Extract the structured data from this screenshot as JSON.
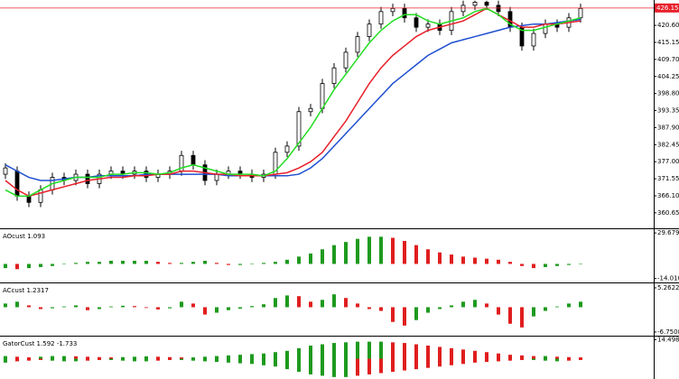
{
  "chart_data": [
    {
      "type": "candlestick",
      "open": [
        373,
        374,
        366,
        364,
        368,
        372,
        371,
        373,
        370,
        373,
        374,
        373,
        374,
        372,
        373,
        374,
        379,
        376,
        371,
        373,
        374,
        373,
        372,
        373,
        380,
        382,
        393,
        394,
        402,
        407,
        412,
        417,
        421,
        425,
        426,
        423,
        420,
        421,
        419,
        425,
        427,
        428,
        427,
        425,
        420,
        414,
        418,
        421,
        420,
        423
      ],
      "high": [
        376.5,
        375.5,
        367.5,
        369.5,
        373.5,
        373.5,
        374.5,
        374.5,
        374.5,
        375.5,
        375.5,
        375.5,
        375.5,
        374.5,
        375.5,
        380.5,
        380.5,
        377.5,
        374.5,
        375.5,
        375.5,
        374.5,
        374.5,
        381.5,
        383.5,
        394.5,
        395.5,
        403.5,
        408.5,
        413.5,
        418.5,
        422.5,
        426.5,
        427.5,
        427.5,
        424.5,
        422.5,
        422.5,
        426.5,
        428.5,
        428.5,
        428.5,
        428.5,
        426.5,
        421.5,
        419.5,
        422.5,
        422.5,
        424.5,
        427.5
      ],
      "low": [
        371.5,
        364.5,
        362.5,
        362.5,
        366.5,
        369.5,
        369.5,
        368.5,
        368.5,
        371.5,
        371.5,
        371.5,
        370.5,
        370.5,
        371.5,
        372.5,
        374.5,
        369.5,
        369.5,
        371.5,
        371.5,
        370.5,
        370.5,
        371.5,
        378.5,
        380.5,
        391.5,
        392.5,
        400.5,
        405.5,
        410.5,
        415.5,
        419.5,
        423.5,
        421.5,
        418.5,
        418.5,
        417.5,
        417.5,
        423.5,
        425.5,
        425.5,
        423.5,
        418.5,
        412.5,
        412.5,
        416.5,
        418.5,
        418.5,
        421.5
      ],
      "close": [
        375,
        366,
        364,
        368,
        372,
        371,
        373,
        370,
        373,
        374,
        373,
        374,
        372,
        373,
        374,
        379,
        376,
        371,
        373,
        374,
        373,
        372,
        373,
        380,
        382,
        393,
        394,
        402,
        407,
        412,
        417,
        421,
        425,
        426,
        423,
        420,
        421,
        419,
        425,
        427,
        428,
        427,
        425,
        420,
        414,
        418,
        421,
        420,
        423,
        426
      ],
      "up_color": "#ffffff",
      "down_color": "#000000",
      "lines": [
        {
          "color": "#1f4fd0",
          "values": [
            376,
            374,
            372,
            371,
            371,
            371.5,
            372,
            372,
            372.5,
            372.5,
            372.5,
            372.5,
            373,
            373,
            373,
            373,
            373,
            373,
            373,
            372.5,
            372.5,
            372.5,
            372.5,
            372.5,
            372.5,
            373,
            375,
            378,
            382,
            386,
            390,
            394,
            398,
            402,
            405,
            408,
            411,
            413,
            415,
            416,
            417,
            418,
            419,
            420,
            420.5,
            421,
            421,
            421.5,
            422,
            422.5
          ]
        },
        {
          "color": "#e8202a",
          "values": [
            371,
            368,
            366,
            367,
            368,
            369,
            370,
            371,
            371.5,
            372,
            372,
            372.5,
            372.5,
            373,
            373,
            374,
            374,
            373.5,
            373,
            373,
            372.5,
            372.5,
            372.5,
            373,
            373.5,
            375,
            377,
            380,
            385,
            390,
            396,
            402,
            407,
            411,
            414,
            417,
            419,
            420,
            421,
            422,
            424,
            426,
            424,
            422,
            420,
            420,
            421,
            421,
            421.5,
            422
          ]
        },
        {
          "color": "#22dd22",
          "values": [
            368,
            366,
            366,
            368,
            370,
            371,
            372,
            372,
            372,
            373,
            373,
            373.5,
            373.5,
            373,
            373.5,
            375,
            376,
            375,
            374,
            373,
            373,
            373,
            372.5,
            374,
            378,
            383,
            388,
            394,
            400,
            405,
            410,
            415,
            419,
            422,
            424,
            424,
            422,
            421,
            422,
            423,
            425,
            426,
            424,
            421,
            419,
            419,
            420,
            421,
            422,
            423
          ]
        }
      ],
      "price_line": 426.15,
      "price_color": "#e8202a",
      "ylim": [
        356.0,
        428.7
      ],
      "yticks": [
        {
          "value": 420.6,
          "label": "420.60"
        },
        415.15,
        {
          "value": 409.7,
          "label": "409.70"
        },
        404.25,
        {
          "value": 398.8,
          "label": "398.80"
        },
        393.35,
        {
          "value": 387.9,
          "label": "387.90"
        },
        382.45,
        {
          "value": 377,
          "label": "377.00"
        },
        371.55,
        {
          "value": 366.1,
          "label": "366.10"
        },
        360.65
      ]
    },
    {
      "type": "histogram",
      "title": "AOcust 1.093",
      "up_color": "#1e9a1e",
      "down_color": "#e01e1e",
      "series": [
        {
          "values": [
            -4,
            -5,
            -4,
            -3,
            -2,
            0,
            1,
            2,
            2,
            3,
            3,
            3,
            3,
            2,
            1,
            1,
            2,
            3,
            1,
            -1,
            -1,
            0,
            1,
            2,
            4,
            7,
            10,
            14,
            18,
            21,
            24,
            26,
            26,
            25,
            22,
            18,
            14,
            11,
            9,
            7,
            6,
            5,
            4,
            2,
            -2,
            -4,
            -3,
            -2,
            -1,
            0
          ]
        }
      ],
      "ylim": [
        -16,
        31.5
      ],
      "yticks": [
        29.679,
        {
          "value": -14.01,
          "label": "-14.010"
        }
      ]
    },
    {
      "type": "histogram",
      "title": "ACcust 1.2317",
      "up_color": "#1e9a1e",
      "down_color": "#e01e1e",
      "series": [
        {
          "values": [
            1,
            1.5,
            0.5,
            -0.5,
            -0.3,
            0.2,
            0.5,
            -0.8,
            -0.5,
            0.2,
            0.4,
            0.3,
            -0.2,
            -0.6,
            -0.3,
            1.5,
            1,
            -2,
            -1.5,
            -0.8,
            -0.4,
            0.3,
            0.8,
            2.5,
            3.2,
            3,
            1.5,
            2,
            3.5,
            2.5,
            1,
            -0.5,
            -1,
            -4,
            -5,
            -3.5,
            -1.5,
            -0.5,
            0.5,
            1.5,
            2,
            1,
            -2,
            -4.5,
            -5.5,
            -2.5,
            -1,
            0.2,
            1,
            1.5
          ]
        }
      ],
      "ylim": [
        -7.5,
        6
      ],
      "yticks": [
        5.2622,
        -6.7508
      ]
    },
    {
      "type": "histogram",
      "title": "GatorCust 1.592 -1.733",
      "up_color": "#1e9a1e",
      "down_color": "#e01e1e",
      "series": [
        {
          "values": [
            2,
            1.5,
            1,
            1.5,
            2,
            2,
            1.8,
            1.5,
            1.2,
            1,
            1.2,
            1.5,
            1.8,
            1.5,
            1.2,
            1,
            1,
            1.5,
            2,
            2.5,
            3,
            3.5,
            4,
            5,
            6,
            8,
            10,
            11,
            12,
            12.5,
            13,
            13,
            13,
            12.5,
            12,
            11,
            10,
            9,
            8,
            7,
            6,
            5,
            4,
            3,
            2.5,
            2,
            2,
            1.5,
            1.2,
            1
          ]
        },
        {
          "values": [
            -3,
            -2,
            -1.5,
            -1,
            -1.5,
            -2,
            -2,
            -1.5,
            -1,
            -1,
            -1.5,
            -2,
            -2,
            -1.5,
            -1,
            -1,
            -1.5,
            -2,
            -2.5,
            -3,
            -3.5,
            -4,
            -5,
            -6,
            -8,
            -10,
            -12,
            -13,
            -14,
            -14,
            -13,
            -12,
            -11,
            -10,
            -9,
            -8,
            -7,
            -6,
            -5,
            -4,
            -3,
            -2.5,
            -2,
            -1.5,
            -1,
            -1,
            -1.5,
            -2,
            -1.5,
            -1
          ]
        }
      ],
      "ylim": [
        -15.5,
        15.5
      ],
      "yticks": [
        14.498
      ]
    }
  ]
}
